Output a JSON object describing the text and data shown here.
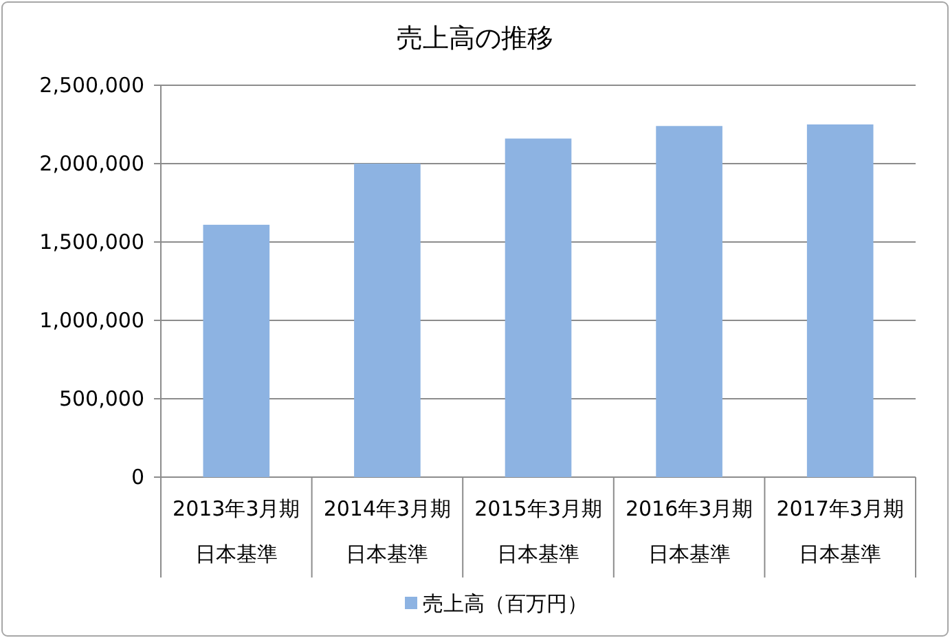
{
  "chart_data": {
    "type": "bar",
    "title": "売上高の推移",
    "categories": [
      "2013年3月期日本基準",
      "2014年3月期日本基準",
      "2015年3月期日本基準",
      "2016年3月期日本基準",
      "2017年3月期日本基準"
    ],
    "series": [
      {
        "name": "売上高（百万円）",
        "color": "#8db3e2",
        "values": [
          1610000,
          2000000,
          2160000,
          2240000,
          2250000
        ]
      }
    ],
    "ylim": [
      0,
      2500000
    ],
    "yticks": [
      {
        "value": 0,
        "label": "0"
      },
      {
        "value": 500000,
        "label": "500,000"
      },
      {
        "value": 1000000,
        "label": "1,000,000"
      },
      {
        "value": 1500000,
        "label": "1,500,000"
      },
      {
        "value": 2000000,
        "label": "2,000,000"
      },
      {
        "value": 2500000,
        "label": "2,500,000"
      }
    ],
    "grid": "y",
    "legend": "bottom"
  }
}
